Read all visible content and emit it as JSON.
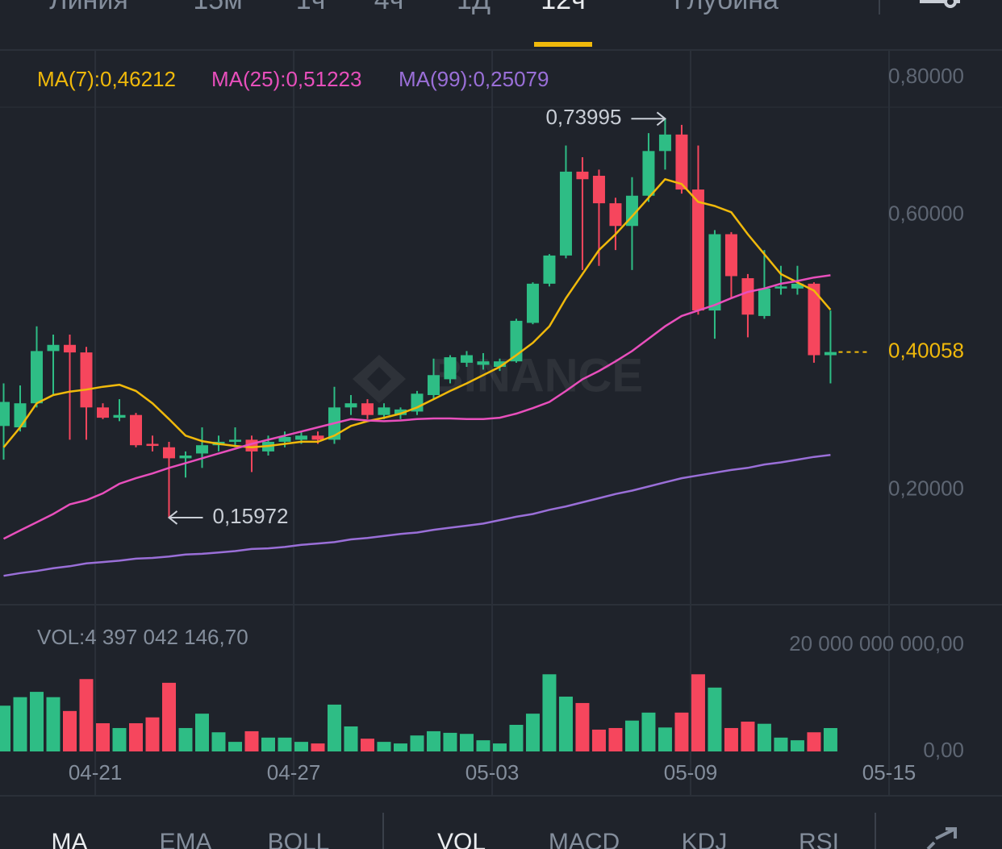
{
  "header": {
    "tabs": [
      "Линия",
      "15м",
      "1ч",
      "4ч",
      "1Д",
      "12ч",
      "Глубина"
    ],
    "active_tab": 5
  },
  "chart_data": [
    {
      "type": "candlestick",
      "watermark": "BINANCE",
      "categories": [
        null,
        null,
        null,
        null,
        null,
        null,
        null,
        null,
        null,
        null,
        null,
        null,
        null,
        null,
        null,
        null,
        null,
        null,
        null,
        null,
        null,
        null,
        null,
        null,
        null,
        null,
        null,
        null,
        null,
        null,
        null,
        null,
        null,
        null,
        null,
        null,
        null,
        null,
        null,
        null,
        null,
        null,
        null,
        null,
        null,
        null,
        null,
        null,
        null,
        null,
        null
      ],
      "open": [
        0.293,
        0.291,
        0.326,
        0.402,
        0.411,
        0.4,
        0.32,
        0.305,
        0.309,
        0.267,
        0.262,
        0.246,
        0.253,
        0.265,
        0.27,
        0.273,
        0.256,
        0.27,
        0.273,
        0.279,
        0.273,
        0.32,
        0.326,
        0.309,
        0.309,
        0.314,
        0.338,
        0.361,
        0.385,
        0.382,
        0.379,
        0.387,
        0.443,
        0.5,
        0.541,
        0.663,
        0.657,
        0.617,
        0.584,
        0.628,
        0.693,
        0.717,
        0.637,
        0.461,
        0.572,
        0.508,
        0.453,
        0.493,
        0.493,
        0.5,
        0.396
      ],
      "high": [
        0.355,
        0.352,
        0.438,
        0.426,
        0.426,
        0.408,
        0.326,
        0.332,
        0.312,
        0.279,
        0.27,
        0.256,
        0.291,
        0.279,
        0.291,
        0.279,
        0.279,
        0.285,
        0.285,
        0.285,
        0.35,
        0.338,
        0.332,
        0.326,
        0.32,
        0.344,
        0.391,
        0.396,
        0.402,
        0.399,
        0.391,
        0.449,
        0.502,
        0.543,
        0.701,
        0.684,
        0.666,
        0.625,
        0.655,
        0.719,
        0.73995,
        0.731,
        0.701,
        0.578,
        0.575,
        0.514,
        0.549,
        0.526,
        0.526,
        0.502,
        0.461
      ],
      "low": [
        0.244,
        0.285,
        0.32,
        0.338,
        0.273,
        0.273,
        0.303,
        0.3,
        0.262,
        0.256,
        0.15972,
        0.218,
        0.232,
        0.256,
        0.262,
        0.226,
        0.25,
        0.262,
        0.267,
        0.267,
        0.267,
        0.309,
        0.303,
        0.303,
        0.303,
        0.309,
        0.332,
        0.355,
        0.379,
        0.375,
        0.373,
        0.385,
        0.441,
        0.496,
        0.537,
        0.52,
        0.526,
        0.549,
        0.52,
        0.619,
        0.666,
        0.631,
        0.455,
        0.42,
        0.479,
        0.422,
        0.449,
        0.484,
        0.484,
        0.385,
        0.355
      ],
      "close": [
        0.328,
        0.326,
        0.402,
        0.411,
        0.4,
        0.32,
        0.305,
        0.309,
        0.265,
        0.264,
        0.246,
        0.25,
        0.265,
        0.27,
        0.273,
        0.256,
        0.27,
        0.277,
        0.279,
        0.273,
        0.32,
        0.326,
        0.309,
        0.32,
        0.317,
        0.34,
        0.367,
        0.393,
        0.396,
        0.387,
        0.387,
        0.446,
        0.5,
        0.541,
        0.663,
        0.652,
        0.617,
        0.584,
        0.628,
        0.693,
        0.717,
        0.637,
        0.461,
        0.572,
        0.511,
        0.455,
        0.493,
        0.496,
        0.5,
        0.396,
        0.40058
      ],
      "up_color": "#2ebd85",
      "down_color": "#f6465d",
      "series": [
        {
          "name": "MA(7):0,46212",
          "color": "#f0b90b",
          "values": [
            0.262,
            0.291,
            0.326,
            0.338,
            0.343,
            0.346,
            0.35,
            0.353,
            0.344,
            0.326,
            0.303,
            0.279,
            0.271,
            0.267,
            0.264,
            0.262,
            0.264,
            0.267,
            0.27,
            0.27,
            0.279,
            0.293,
            0.3,
            0.305,
            0.311,
            0.32,
            0.332,
            0.344,
            0.355,
            0.367,
            0.379,
            0.396,
            0.414,
            0.438,
            0.479,
            0.514,
            0.549,
            0.572,
            0.598,
            0.625,
            0.652,
            0.645,
            0.619,
            0.613,
            0.604,
            0.572,
            0.543,
            0.514,
            0.502,
            0.49,
            0.46212
          ]
        },
        {
          "name": "MA(25):0,51223",
          "color": "#e84fbc",
          "values": [
            0.129,
            0.141,
            0.153,
            0.165,
            0.179,
            0.185,
            0.195,
            0.209,
            0.217,
            0.224,
            0.232,
            0.239,
            0.246,
            0.253,
            0.26,
            0.267,
            0.273,
            0.279,
            0.285,
            0.291,
            0.297,
            0.303,
            0.301,
            0.3,
            0.301,
            0.303,
            0.304,
            0.304,
            0.303,
            0.303,
            0.305,
            0.311,
            0.319,
            0.328,
            0.344,
            0.361,
            0.373,
            0.387,
            0.402,
            0.42,
            0.438,
            0.453,
            0.461,
            0.469,
            0.479,
            0.488,
            0.493,
            0.5,
            0.504,
            0.509,
            0.51223
          ]
        },
        {
          "name": "MA(99):0,25079",
          "color": "#9a6fd8",
          "values": [
            0.075,
            0.079,
            0.082,
            0.086,
            0.089,
            0.093,
            0.095,
            0.097,
            0.1,
            0.101,
            0.103,
            0.106,
            0.107,
            0.109,
            0.111,
            0.114,
            0.115,
            0.117,
            0.12,
            0.122,
            0.124,
            0.128,
            0.13,
            0.133,
            0.136,
            0.138,
            0.142,
            0.145,
            0.148,
            0.151,
            0.156,
            0.161,
            0.165,
            0.171,
            0.176,
            0.182,
            0.188,
            0.194,
            0.199,
            0.205,
            0.211,
            0.217,
            0.221,
            0.225,
            0.229,
            0.232,
            0.237,
            0.24,
            0.244,
            0.248,
            0.25079
          ]
        }
      ],
      "annotations": [
        {
          "label": "0,73995",
          "value": 0.73995
        },
        {
          "label": "0,15972",
          "value": 0.15972
        }
      ],
      "current_price": {
        "label": "0,40058",
        "value": 0.40058,
        "color": "#f0b90b"
      },
      "xlim": [
        -0.22,
        60.37
      ],
      "xticks": [
        {
          "value": 5.54,
          "label": "04-21"
        },
        {
          "value": 17.54,
          "label": "04-27"
        },
        {
          "value": 29.54,
          "label": "05-03"
        },
        {
          "value": 41.54,
          "label": "05-09"
        },
        {
          "value": 53.54,
          "label": "05-15"
        }
      ],
      "ylim": [
        0.033,
        0.84
      ],
      "yticks": [
        {
          "value": 0.8,
          "label": "0,80000"
        },
        {
          "value": 0.6,
          "label": "0,60000"
        },
        {
          "value": 0.2,
          "label": "0,20000"
        }
      ],
      "grid": true
    },
    {
      "type": "bar",
      "name": "VOL:4 397 042 146,70",
      "values": [
        8600000000.0,
        10200000000.0,
        11200000000.0,
        10200000000.0,
        7600000000.0,
        13600000000.0,
        5300000000.0,
        4400000000.0,
        5300000000.0,
        6400000000.0,
        12900000000.0,
        4400000000.0,
        7100000000.0,
        3600000000.0,
        1800000000.0,
        3800000000.0,
        2600000000.0,
        2600000000.0,
        1800000000.0,
        1500000000.0,
        8800000000.0,
        4700000000.0,
        2400000000.0,
        1800000000.0,
        1500000000.0,
        3000000000.0,
        3800000000.0,
        3500000000.0,
        3300000000.0,
        2100000000.0,
        1500000000.0,
        5000000000.0,
        7100000000.0,
        14500000000.0,
        10300000000.0,
        9100000000.0,
        4100000000.0,
        4400000000.0,
        5800000000.0,
        7300000000.0,
        4500000000.0,
        7300000000.0,
        14500000000.0,
        12000000000.0,
        4400000000.0,
        5600000000.0,
        5200000000.0,
        2600000000.0,
        2100000000.0,
        3600000000.0,
        4397042146.7
      ],
      "ylim": [
        0,
        20000000000
      ],
      "yticks": [
        {
          "value": 20000000000,
          "label": "20 000 000 000,00"
        },
        {
          "value": 0,
          "label": "0,00"
        }
      ]
    }
  ],
  "footer": {
    "indicator_tabs": [
      "MA",
      "EMA",
      "BOLL"
    ],
    "sub_tabs": [
      "VOL",
      "MACD",
      "KDJ",
      "RSI"
    ]
  }
}
